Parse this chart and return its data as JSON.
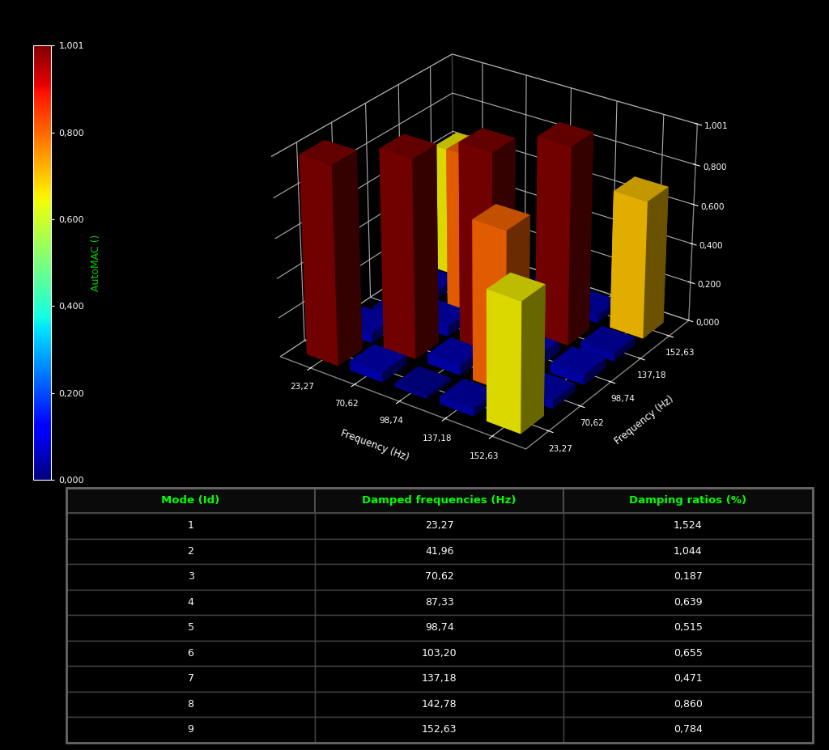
{
  "frequencies": [
    23.27,
    70.62,
    98.74,
    137.18,
    152.63
  ],
  "mac_matrix": [
    [
      1.0,
      0.05,
      0.02,
      0.04,
      0.65
    ],
    [
      0.05,
      1.0,
      0.05,
      0.8,
      0.04
    ],
    [
      0.02,
      0.05,
      1.0,
      0.06,
      0.05
    ],
    [
      0.04,
      0.8,
      0.06,
      1.0,
      0.04
    ],
    [
      0.65,
      0.04,
      0.05,
      0.04,
      0.7
    ]
  ],
  "colorbar_label": "AutoMAC ()",
  "xlabel": "Frequency (Hz)",
  "ylabel": "Frequency (Hz)",
  "zlim": [
    0.0,
    1.001
  ],
  "zticks": [
    0.0,
    0.2,
    0.4,
    0.6,
    0.8,
    1.001
  ],
  "background_color": "#000000",
  "text_color": "#ffffff",
  "grid_color": "#ffffff",
  "modes": [
    1,
    2,
    3,
    4,
    5,
    6,
    7,
    8,
    9
  ],
  "damped_frequencies": [
    "23,27",
    "41,96",
    "70,62",
    "87,33",
    "98,74",
    "103,20",
    "137,18",
    "142,78",
    "152,63"
  ],
  "damping_ratios": [
    "1,524",
    "1,044",
    "0,187",
    "0,639",
    "0,515",
    "0,655",
    "0,471",
    "0,860",
    "0,784"
  ],
  "col_headers": [
    "Mode (Id)",
    "Damped frequencies (Hz)",
    "Damping ratios (%)"
  ],
  "elev": 28,
  "azim": -55
}
